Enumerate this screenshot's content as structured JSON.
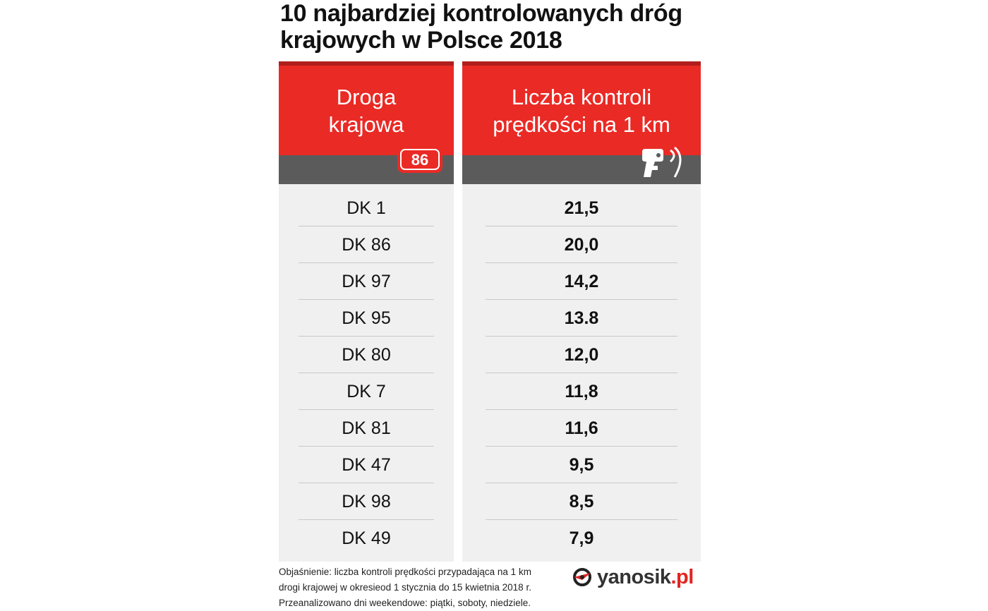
{
  "title": {
    "line1": "10 najbardziej kontrolowanych dróg",
    "line2": "krajowych w Polsce 2018"
  },
  "table": {
    "col1_header": {
      "line1": "Droga",
      "line2": "krajowa"
    },
    "col2_header": {
      "line1": "Liczba kontroli",
      "line2": "prędkości na 1 km"
    },
    "road_sign": "86",
    "header_icon": "speed-camera-icon",
    "rows": [
      {
        "road": "DK 1",
        "value": "21,5"
      },
      {
        "road": "DK 86",
        "value": "20,0"
      },
      {
        "road": "DK 97",
        "value": "14,2"
      },
      {
        "road": "DK 95",
        "value": "13.8"
      },
      {
        "road": "DK 80",
        "value": "12,0"
      },
      {
        "road": "DK 7",
        "value": "11,8"
      },
      {
        "road": "DK 81",
        "value": "11,6"
      },
      {
        "road": "DK 47",
        "value": "9,5"
      },
      {
        "road": "DK 98",
        "value": "8,5"
      },
      {
        "road": "DK 49",
        "value": "7,9"
      }
    ]
  },
  "footnote": {
    "line1": "Objaśnienie: liczba kontroli prędkości przypadająca na 1 km",
    "line2": "drogi krajowej w okresieod 1 stycznia do 15 kwietnia 2018 r.",
    "line3": "Przeanalizowano dni weekendowe: piątki, soboty, niedziele."
  },
  "logo": {
    "name": "yanosik",
    "suffix": ".pl"
  },
  "colors": {
    "header_red": "#ea2a25",
    "header_red_top": "#b01f1c",
    "header_gray": "#5b5b5b",
    "body_gray": "#f0f0f0",
    "logo_red": "#e3231f"
  }
}
